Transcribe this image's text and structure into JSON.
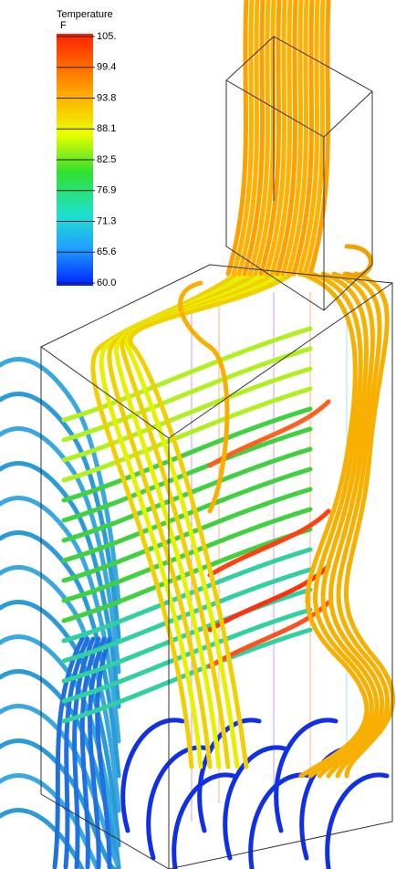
{
  "legend": {
    "title": "Temperature",
    "unit": "F",
    "ticks": [
      "105.",
      "99.4",
      "93.8",
      "88.1",
      "82.5",
      "76.9",
      "71.3",
      "65.6",
      "60.0"
    ]
  }
}
